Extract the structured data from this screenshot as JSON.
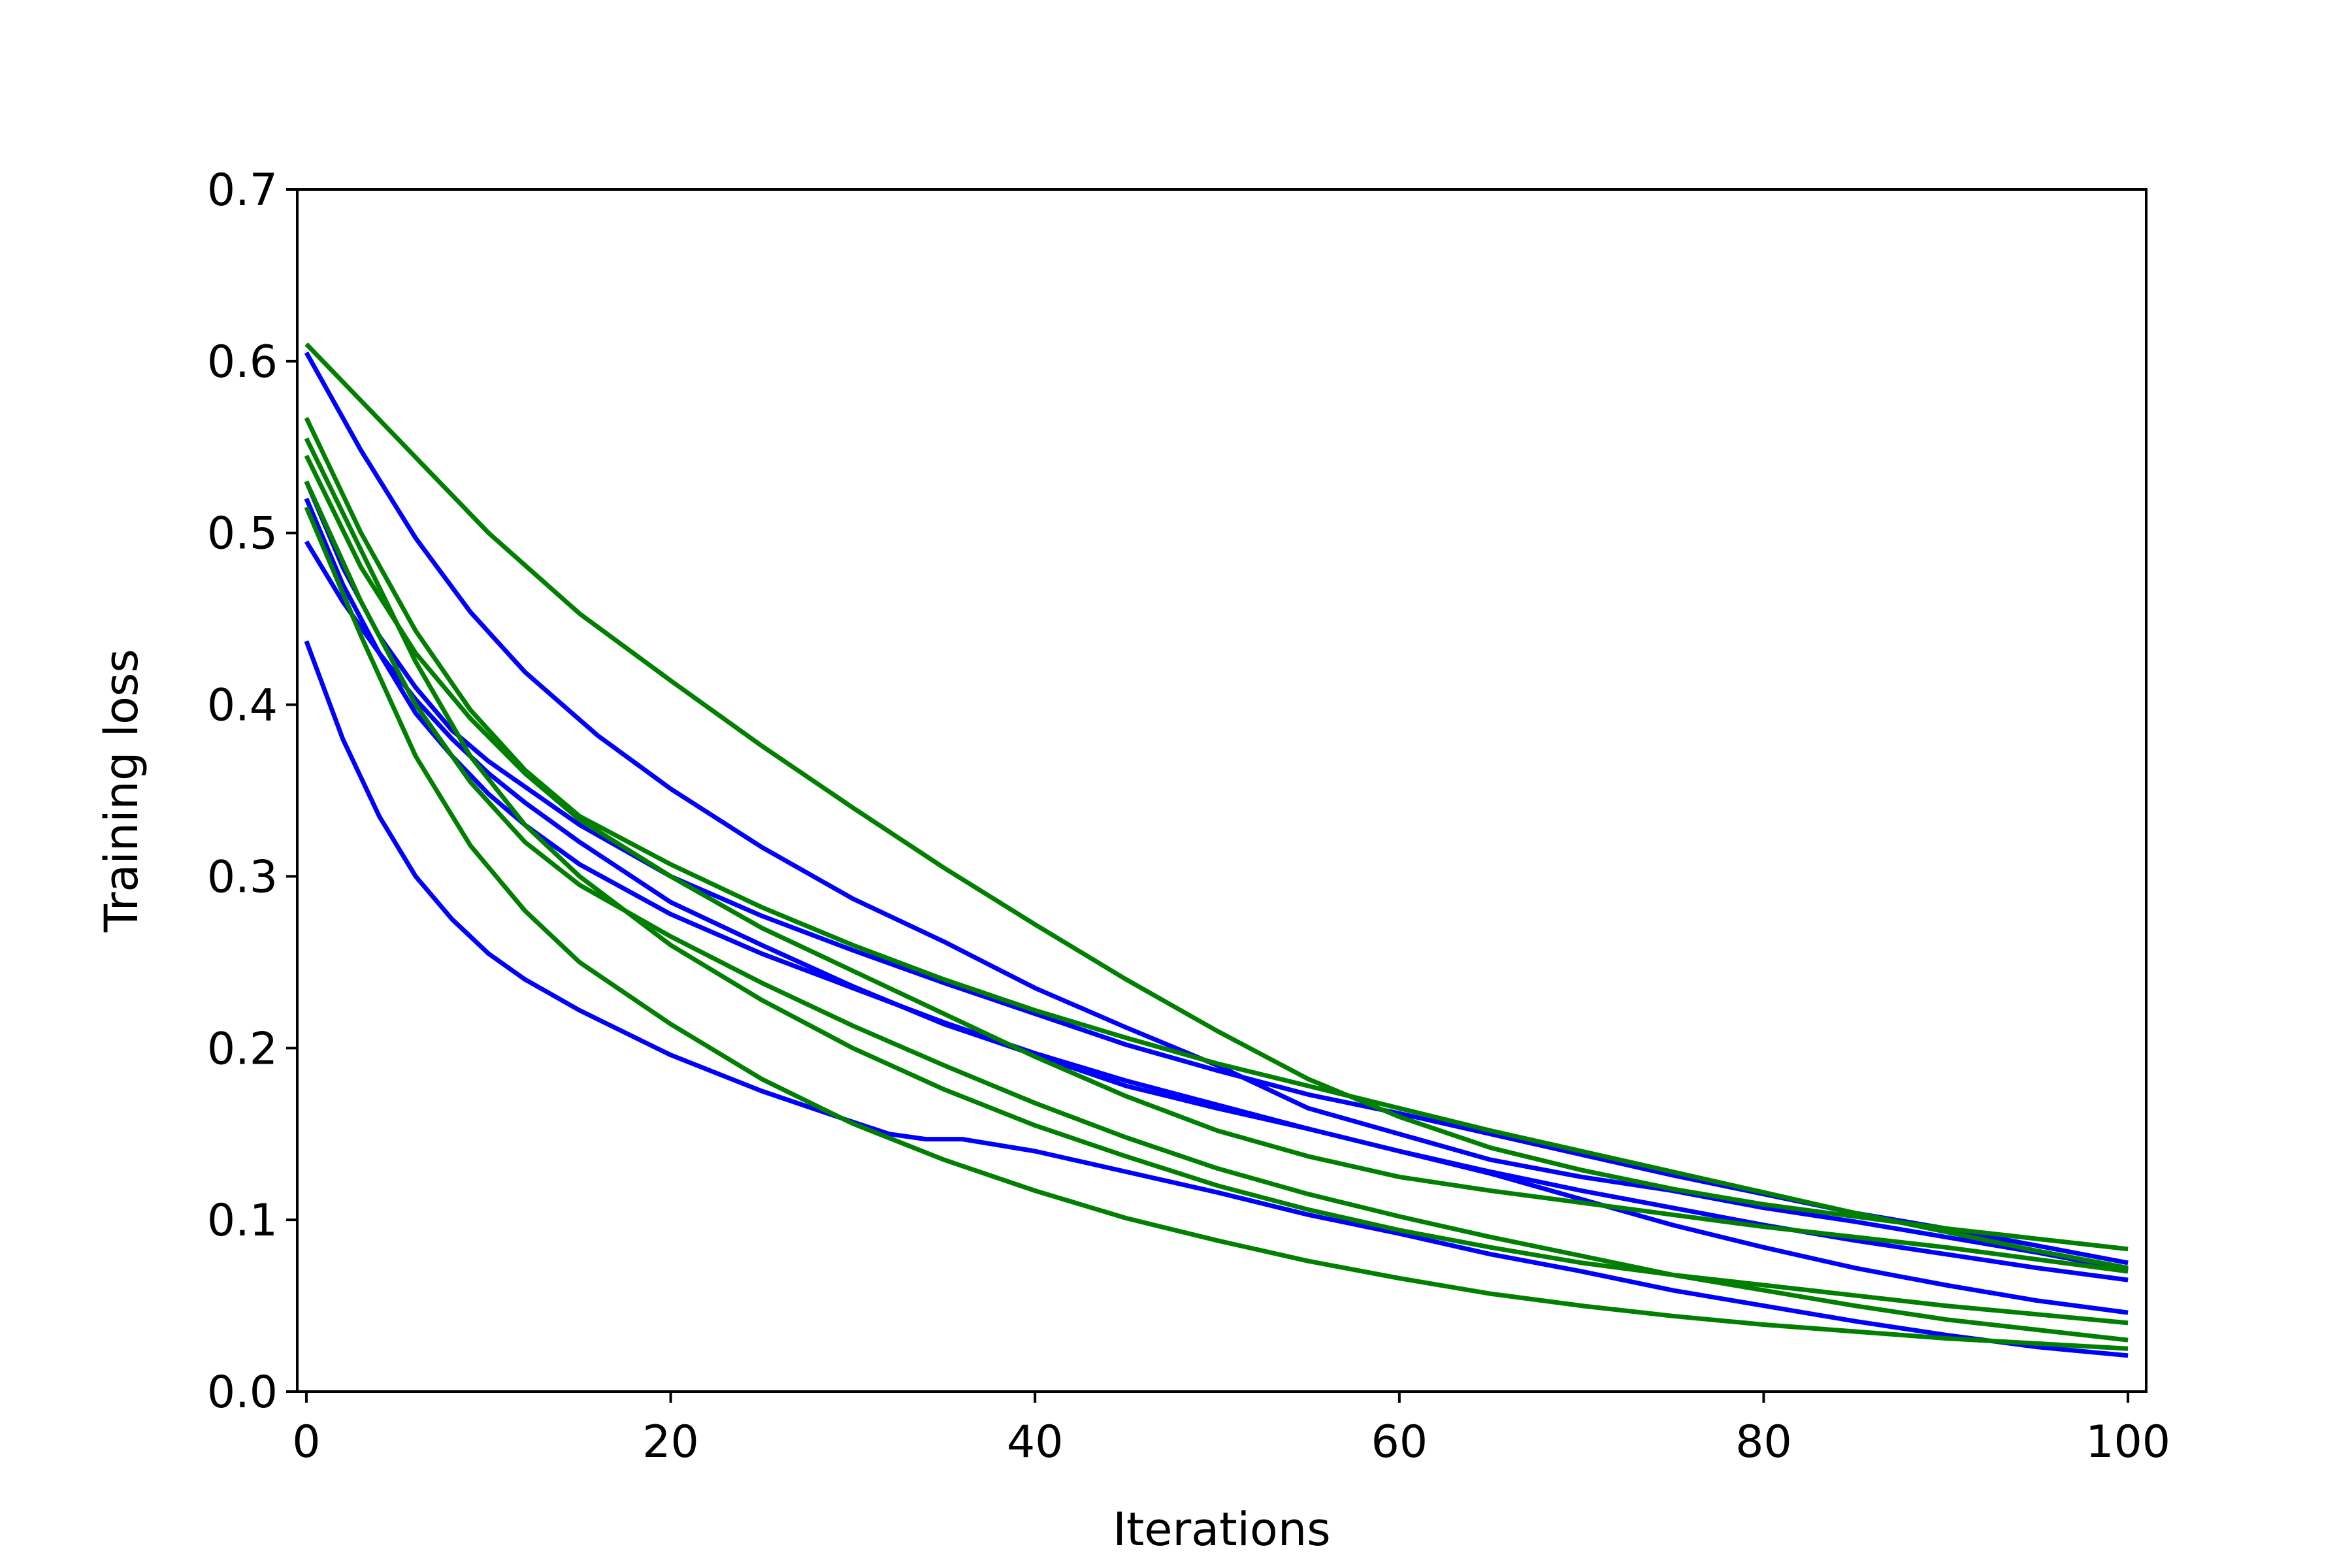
{
  "chart_data": {
    "type": "line",
    "title": "",
    "xlabel": "Iterations",
    "ylabel": "Training loss",
    "xlim": [
      0,
      100
    ],
    "ylim": [
      0,
      0.7
    ],
    "xticks": [
      "0",
      "20",
      "40",
      "60",
      "80",
      "100"
    ],
    "yticks": [
      "0.0",
      "0.1",
      "0.2",
      "0.3",
      "0.4",
      "0.5",
      "0.6",
      "0.7"
    ],
    "grid": false,
    "legend": "none",
    "colors": {
      "blue": "#0000ff",
      "green": "#007f00"
    },
    "series": [
      {
        "color": "#0000ff",
        "x": [
          0,
          3,
          6,
          9,
          12,
          16,
          20,
          25,
          30,
          35,
          40,
          45,
          50,
          55,
          60,
          65,
          70,
          75,
          80,
          85,
          90,
          95,
          100
        ],
        "y": [
          0.605,
          0.548,
          0.497,
          0.454,
          0.419,
          0.382,
          0.351,
          0.317,
          0.287,
          0.262,
          0.235,
          0.212,
          0.19,
          0.165,
          0.15,
          0.135,
          0.125,
          0.117,
          0.107,
          0.099,
          0.09,
          0.081,
          0.071
        ]
      },
      {
        "color": "#0000ff",
        "x": [
          0,
          2,
          4,
          6,
          8,
          10,
          15,
          20,
          25,
          30,
          35,
          40,
          45,
          50,
          55,
          60,
          65,
          70,
          75,
          80,
          85,
          90,
          95,
          100
        ],
        "y": [
          0.53,
          0.48,
          0.44,
          0.41,
          0.385,
          0.367,
          0.33,
          0.3,
          0.277,
          0.257,
          0.238,
          0.22,
          0.202,
          0.187,
          0.173,
          0.162,
          0.15,
          0.138,
          0.126,
          0.115,
          0.104,
          0.095,
          0.085,
          0.075
        ]
      },
      {
        "color": "#0000ff",
        "x": [
          0,
          2,
          4,
          6,
          8,
          10,
          12,
          15,
          20,
          25,
          30,
          35,
          40,
          45,
          50,
          55,
          60,
          65,
          70,
          75,
          80,
          85,
          90,
          95,
          100
        ],
        "y": [
          0.52,
          0.47,
          0.43,
          0.395,
          0.37,
          0.348,
          0.33,
          0.307,
          0.278,
          0.255,
          0.235,
          0.215,
          0.197,
          0.181,
          0.167,
          0.153,
          0.14,
          0.128,
          0.117,
          0.107,
          0.097,
          0.088,
          0.08,
          0.072,
          0.065
        ]
      },
      {
        "color": "#0000ff",
        "x": [
          0,
          2,
          4,
          6,
          8,
          10,
          12,
          15,
          20,
          25,
          30,
          35,
          40,
          45,
          50,
          55,
          60,
          65,
          70,
          75,
          80,
          85,
          90,
          95,
          100
        ],
        "y": [
          0.495,
          0.46,
          0.43,
          0.403,
          0.38,
          0.36,
          0.343,
          0.32,
          0.285,
          0.26,
          0.236,
          0.214,
          0.196,
          0.178,
          0.165,
          0.153,
          0.14,
          0.127,
          0.112,
          0.097,
          0.084,
          0.072,
          0.062,
          0.053,
          0.046
        ]
      },
      {
        "color": "#0000ff",
        "x": [
          0,
          2,
          4,
          6,
          8,
          10,
          12,
          15,
          20,
          25,
          30,
          32,
          34,
          36,
          40,
          45,
          50,
          55,
          60,
          65,
          70,
          75,
          80,
          85,
          90,
          95,
          100
        ],
        "y": [
          0.437,
          0.38,
          0.335,
          0.3,
          0.275,
          0.255,
          0.24,
          0.222,
          0.196,
          0.175,
          0.157,
          0.15,
          0.147,
          0.147,
          0.14,
          0.128,
          0.116,
          0.103,
          0.092,
          0.08,
          0.07,
          0.059,
          0.05,
          0.041,
          0.033,
          0.026,
          0.021
        ]
      },
      {
        "color": "#007f00",
        "x": [
          0,
          5,
          10,
          15,
          20,
          25,
          30,
          35,
          40,
          45,
          50,
          55,
          60,
          65,
          70,
          75,
          80,
          85,
          90,
          95,
          100
        ],
        "y": [
          0.61,
          0.555,
          0.5,
          0.453,
          0.414,
          0.376,
          0.34,
          0.305,
          0.272,
          0.24,
          0.21,
          0.182,
          0.16,
          0.142,
          0.129,
          0.118,
          0.109,
          0.102,
          0.095,
          0.089,
          0.083
        ]
      },
      {
        "color": "#007f00",
        "x": [
          0,
          3,
          6,
          9,
          12,
          15,
          20,
          25,
          30,
          35,
          40,
          45,
          50,
          55,
          60,
          65,
          70,
          75,
          80,
          85,
          90,
          95,
          100
        ],
        "y": [
          0.567,
          0.5,
          0.443,
          0.397,
          0.362,
          0.335,
          0.307,
          0.282,
          0.26,
          0.24,
          0.222,
          0.206,
          0.191,
          0.178,
          0.165,
          0.152,
          0.14,
          0.128,
          0.116,
          0.104,
          0.093,
          0.082,
          0.072
        ]
      },
      {
        "color": "#007f00",
        "x": [
          0,
          3,
          6,
          9,
          12,
          15,
          20,
          25,
          30,
          35,
          40,
          45,
          50,
          55,
          60,
          65,
          70,
          75,
          80,
          85,
          90,
          95,
          100
        ],
        "y": [
          0.545,
          0.48,
          0.43,
          0.392,
          0.36,
          0.333,
          0.3,
          0.27,
          0.245,
          0.22,
          0.195,
          0.172,
          0.152,
          0.137,
          0.125,
          0.117,
          0.11,
          0.103,
          0.096,
          0.09,
          0.084,
          0.077,
          0.07
        ]
      },
      {
        "color": "#007f00",
        "x": [
          0,
          3,
          6,
          9,
          12,
          15,
          20,
          25,
          30,
          35,
          40,
          45,
          50,
          55,
          60,
          65,
          70,
          75,
          80,
          85,
          90,
          95,
          100
        ],
        "y": [
          0.555,
          0.49,
          0.425,
          0.37,
          0.33,
          0.3,
          0.26,
          0.228,
          0.2,
          0.176,
          0.155,
          0.137,
          0.12,
          0.106,
          0.094,
          0.084,
          0.075,
          0.068,
          0.062,
          0.056,
          0.05,
          0.045,
          0.04
        ]
      },
      {
        "color": "#007f00",
        "x": [
          0,
          3,
          6,
          9,
          12,
          15,
          20,
          25,
          30,
          35,
          40,
          45,
          50,
          55,
          60,
          65,
          70,
          75,
          80,
          85,
          90,
          95,
          100
        ],
        "y": [
          0.53,
          0.46,
          0.4,
          0.355,
          0.32,
          0.295,
          0.265,
          0.238,
          0.213,
          0.19,
          0.168,
          0.148,
          0.13,
          0.115,
          0.102,
          0.09,
          0.079,
          0.068,
          0.059,
          0.05,
          0.042,
          0.036,
          0.03
        ]
      },
      {
        "color": "#007f00",
        "x": [
          0,
          3,
          6,
          9,
          12,
          15,
          20,
          25,
          30,
          35,
          40,
          45,
          50,
          55,
          60,
          65,
          70,
          75,
          80,
          85,
          90,
          95,
          100
        ],
        "y": [
          0.515,
          0.44,
          0.37,
          0.318,
          0.28,
          0.25,
          0.214,
          0.182,
          0.156,
          0.135,
          0.117,
          0.101,
          0.088,
          0.076,
          0.066,
          0.057,
          0.05,
          0.044,
          0.039,
          0.035,
          0.031,
          0.028,
          0.025
        ]
      }
    ]
  }
}
